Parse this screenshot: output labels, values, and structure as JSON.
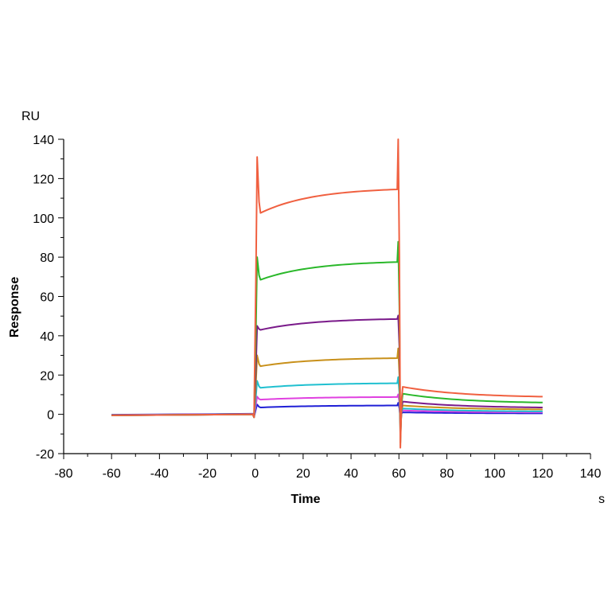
{
  "chart_data": {
    "type": "line",
    "title": "",
    "xlabel": "Time",
    "ylabel": "Response",
    "x_unit": "s",
    "y_unit": "RU",
    "xlim": [
      -80,
      140
    ],
    "ylim": [
      -20,
      140
    ],
    "x_ticks": [
      -80,
      -60,
      -40,
      -20,
      0,
      20,
      40,
      60,
      80,
      100,
      120,
      140
    ],
    "y_ticks": [
      -20,
      0,
      20,
      40,
      60,
      80,
      100,
      120,
      140
    ],
    "x_tick_labels": [
      "-80",
      "-60",
      "-40",
      "-20",
      "0",
      "20",
      "40",
      "60",
      "80",
      "100",
      "120",
      "140"
    ],
    "y_tick_labels": [
      "-20",
      "0",
      "20",
      "40",
      "60",
      "80",
      "100",
      "120",
      "140"
    ],
    "grid": false,
    "legend": "none",
    "series": [
      {
        "color": "#1f1fd6",
        "baseline": 0.3,
        "plateau_start": 3.5,
        "plateau_end": 4.5,
        "spike_on": 5,
        "dissoc_start": 1.0,
        "dissoc_end": 0.5
      },
      {
        "color": "#e040e0",
        "baseline": 0.2,
        "plateau_start": 7.5,
        "plateau_end": 8.8,
        "spike_on": 9,
        "dissoc_start": 2.0,
        "dissoc_end": 1.0
      },
      {
        "color": "#20c0d0",
        "baseline": 0.1,
        "plateau_start": 13.5,
        "plateau_end": 15.8,
        "spike_on": 17,
        "dissoc_start": 3.0,
        "dissoc_end": 1.5
      },
      {
        "color": "#c8901a",
        "baseline": 0.0,
        "plateau_start": 24.5,
        "plateau_end": 28.6,
        "spike_on": 30,
        "dissoc_start": 4.5,
        "dissoc_end": 2.5
      },
      {
        "color": "#7a1a8a",
        "baseline": 0.0,
        "plateau_start": 43.0,
        "plateau_end": 48.5,
        "spike_on": 45,
        "dissoc_start": 6.5,
        "dissoc_end": 3.5
      },
      {
        "color": "#2ab82a",
        "baseline": 0.0,
        "plateau_start": 68.5,
        "plateau_end": 77.5,
        "spike_on": 80,
        "dissoc_start": 10.5,
        "dissoc_end": 6.0
      },
      {
        "color": "#f06040",
        "baseline": 0.0,
        "plateau_start": 102.5,
        "plateau_end": 114.5,
        "spike_on": 131,
        "dissoc_start": 14.0,
        "dissoc_end": 9.0
      }
    ]
  }
}
